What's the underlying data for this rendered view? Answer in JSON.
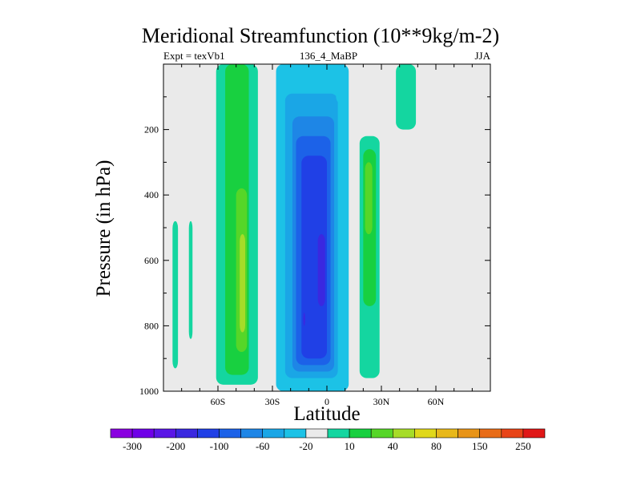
{
  "chart_data": {
    "type": "contour",
    "title": "Meridional Streamfunction (10**9kg/m-2)",
    "subtitle_left": "Expt = texVb1",
    "subtitle_center": "136_4_MaBP",
    "subtitle_right": "JJA",
    "xlabel": "Latitude",
    "ylabel": "Pressure (in hPa)",
    "xlim": [
      -90,
      90
    ],
    "ylim": [
      0,
      1000
    ],
    "y_reversed": true,
    "x_ticks": [
      {
        "value": -60,
        "label": "60S"
      },
      {
        "value": -30,
        "label": "30S"
      },
      {
        "value": 0,
        "label": "0"
      },
      {
        "value": 30,
        "label": "30N"
      },
      {
        "value": 60,
        "label": "60N"
      }
    ],
    "y_ticks": [
      {
        "value": 200,
        "label": "200"
      },
      {
        "value": 400,
        "label": "400"
      },
      {
        "value": 600,
        "label": "600"
      },
      {
        "value": 800,
        "label": "800"
      },
      {
        "value": 1000,
        "label": "1000"
      }
    ],
    "colorbar": {
      "colors": [
        "#8a00e0",
        "#6f00e8",
        "#5a16e6",
        "#3a28e0",
        "#2040e6",
        "#1c62e8",
        "#1e86e6",
        "#1aa6e6",
        "#1cc2e6",
        "#eaeaea",
        "#14d6a0",
        "#18d040",
        "#56d628",
        "#a6dc28",
        "#e0d81a",
        "#e8b81a",
        "#e89418",
        "#e86c18",
        "#e84418",
        "#e01818"
      ],
      "labels": [
        {
          "text": "-300",
          "index": 1
        },
        {
          "text": "-200",
          "index": 3
        },
        {
          "text": "-100",
          "index": 5
        },
        {
          "text": "-60",
          "index": 7
        },
        {
          "text": "-20",
          "index": 9
        },
        {
          "text": "10",
          "index": 11
        },
        {
          "text": "40",
          "index": 13
        },
        {
          "text": "80",
          "index": 15
        },
        {
          "text": "150",
          "index": 17
        },
        {
          "text": "250",
          "index": 19
        }
      ]
    },
    "cells": [
      {
        "level": 9,
        "lat": [
          -70,
          -68
        ],
        "p": [
          420,
          1000
        ]
      },
      {
        "level": 10,
        "lat": [
          -85,
          -82
        ],
        "p": [
          480,
          930
        ]
      },
      {
        "level": 10,
        "lat": [
          -76,
          -74
        ],
        "p": [
          480,
          840
        ]
      },
      {
        "level": 10,
        "lat": [
          -61,
          -38
        ],
        "p": [
          0,
          980
        ]
      },
      {
        "level": 11,
        "lat": [
          -56,
          -43
        ],
        "p": [
          0,
          950
        ]
      },
      {
        "level": 12,
        "lat": [
          -50,
          -44
        ],
        "p": [
          380,
          880
        ]
      },
      {
        "level": 13,
        "lat": [
          -48,
          -45
        ],
        "p": [
          520,
          820
        ]
      },
      {
        "level": 8,
        "lat": [
          -28,
          12
        ],
        "p": [
          0,
          1000
        ]
      },
      {
        "level": 7,
        "lat": [
          -23,
          6
        ],
        "p": [
          90,
          960
        ]
      },
      {
        "level": 6,
        "lat": [
          -19,
          4
        ],
        "p": [
          160,
          940
        ]
      },
      {
        "level": 5,
        "lat": [
          -17,
          2
        ],
        "p": [
          220,
          920
        ]
      },
      {
        "level": 4,
        "lat": [
          -14,
          0
        ],
        "p": [
          280,
          900
        ]
      },
      {
        "level": 3,
        "lat": [
          -5,
          -1
        ],
        "p": [
          520,
          740
        ]
      },
      {
        "level": 3,
        "lat": [
          -13,
          -12
        ],
        "p": [
          760,
          800
        ]
      },
      {
        "level": 8,
        "lat": [
          5,
          10
        ],
        "p": [
          0,
          120
        ]
      },
      {
        "level": 10,
        "lat": [
          18,
          29
        ],
        "p": [
          220,
          960
        ]
      },
      {
        "level": 11,
        "lat": [
          20,
          27
        ],
        "p": [
          260,
          740
        ]
      },
      {
        "level": 12,
        "lat": [
          21,
          25
        ],
        "p": [
          300,
          520
        ]
      },
      {
        "level": 10,
        "lat": [
          38,
          49
        ],
        "p": [
          0,
          200
        ]
      }
    ]
  }
}
